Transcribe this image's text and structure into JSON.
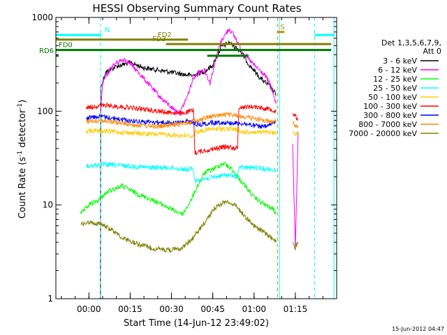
{
  "chart_data": {
    "type": "line",
    "title": "HESSI Observing Summary Count Rates",
    "xlabel": "Start Time (14-Jun-12 23:49:02)",
    "ylabel_main": "Count Rate (s",
    "ylabel_sup": "-1",
    "ylabel_mid": " detector",
    "ylabel_end": ")",
    "scale": "log",
    "xlim": [
      -12,
      90
    ],
    "ylim": [
      1,
      1000
    ],
    "yticks": [
      1,
      10,
      100,
      1000
    ],
    "yticklabels": [
      "1",
      "10",
      "100",
      "1000"
    ],
    "xticks": [
      0,
      15,
      30,
      45,
      60,
      75
    ],
    "xticklabels": [
      "00:00",
      "00:15",
      "00:30",
      "00:45",
      "01:00",
      "01:15"
    ],
    "legend_header": [
      "Det 1,3,5,6,7,9,",
      "Att 0"
    ],
    "legend_placement": "right",
    "timestamp": "15-Jun-2012 04:47",
    "series": [
      {
        "name": "3 - 6 keV",
        "color": "#000000",
        "segments": [
          [
            [
              4.2,
              1
            ],
            [
              4.3,
              180
            ],
            [
              6,
              260
            ],
            [
              10,
              300
            ],
            [
              15,
              330
            ],
            [
              20,
              290
            ],
            [
              25,
              275
            ],
            [
              30,
              260
            ],
            [
              35,
              245
            ],
            [
              38,
              240
            ],
            [
              40,
              255
            ],
            [
              42,
              265
            ],
            [
              45,
              310
            ],
            [
              48,
              480
            ],
            [
              51,
              540
            ],
            [
              55,
              440
            ],
            [
              58,
              320
            ],
            [
              62,
              230
            ],
            [
              66,
              180
            ],
            [
              68,
              150
            ]
          ]
        ]
      },
      {
        "name": "6 - 12 keV",
        "color": "#ff00ff",
        "segments": [
          [
            [
              4.2,
              90
            ],
            [
              5,
              200
            ],
            [
              8,
              290
            ],
            [
              10,
              330
            ],
            [
              13,
              360
            ],
            [
              15,
              320
            ],
            [
              18,
              260
            ],
            [
              22,
              190
            ],
            [
              26,
              140
            ],
            [
              30,
              110
            ],
            [
              33,
              95
            ],
            [
              36,
              150
            ],
            [
              38,
              230
            ],
            [
              40,
              260
            ],
            [
              42,
              280
            ],
            [
              44,
              200
            ],
            [
              46,
              350
            ],
            [
              48,
              560
            ],
            [
              50,
              690
            ],
            [
              51,
              760
            ],
            [
              53,
              620
            ],
            [
              56,
              420
            ],
            [
              60,
              310
            ],
            [
              64,
              240
            ],
            [
              66,
              190
            ],
            [
              68,
              120
            ]
          ],
          [
            [
              74,
              45
            ],
            [
              75,
              3.5
            ],
            [
              76,
              60
            ]
          ]
        ]
      },
      {
        "name": "12 - 25 keV",
        "color": "#00ff00",
        "segments": [
          [
            [
              -3,
              8
            ],
            [
              0,
              10
            ],
            [
              3,
              11
            ],
            [
              7,
              14
            ],
            [
              12,
              16
            ],
            [
              18,
              13
            ],
            [
              24,
              11
            ],
            [
              30,
              9
            ],
            [
              34,
              8
            ],
            [
              37,
              11
            ],
            [
              39,
              15
            ],
            [
              42,
              22
            ],
            [
              46,
              25
            ],
            [
              49,
              28
            ],
            [
              52,
              24
            ],
            [
              56,
              17
            ],
            [
              60,
              12
            ],
            [
              64,
              10
            ],
            [
              67,
              9
            ],
            [
              68,
              8
            ]
          ]
        ]
      },
      {
        "name": "25 - 50 keV",
        "color": "#00ffff",
        "segments": [
          [
            [
              -1,
              26
            ],
            [
              6,
              27
            ],
            [
              14,
              26
            ],
            [
              22,
              25
            ],
            [
              29,
              25
            ],
            [
              35,
              24
            ],
            [
              38,
              24
            ],
            [
              38.5,
              18
            ],
            [
              42,
              19
            ],
            [
              46,
              20
            ],
            [
              50,
              21
            ],
            [
              54,
              20
            ],
            [
              54.5,
              25
            ],
            [
              60,
              25
            ],
            [
              66,
              24
            ],
            [
              68,
              23
            ]
          ]
        ]
      },
      {
        "name": "50 - 100 keV",
        "color": "#ffcc00",
        "segments": [
          [
            [
              -1,
              62
            ],
            [
              6,
              61
            ],
            [
              14,
              59
            ],
            [
              22,
              57
            ],
            [
              29,
              56
            ],
            [
              35,
              55
            ],
            [
              38,
              54
            ],
            [
              38.5,
              60
            ],
            [
              44,
              64
            ],
            [
              50,
              65
            ],
            [
              54,
              64
            ],
            [
              54.5,
              60
            ],
            [
              60,
              60
            ],
            [
              66,
              59
            ],
            [
              68,
              58
            ]
          ],
          [
            [
              74,
              60
            ],
            [
              75,
              58
            ],
            [
              76,
              57
            ]
          ]
        ]
      },
      {
        "name": "100 - 300 keV",
        "color": "#ff0000",
        "segments": [
          [
            [
              -1,
              110
            ],
            [
              6,
              115
            ],
            [
              14,
              110
            ],
            [
              22,
              103
            ],
            [
              29,
              97
            ],
            [
              34,
              95
            ],
            [
              37,
              100
            ],
            [
              38,
              102
            ],
            [
              38.5,
              36
            ],
            [
              42,
              38
            ],
            [
              46,
              40
            ],
            [
              50,
              42
            ],
            [
              54,
              40
            ],
            [
              54.5,
              110
            ],
            [
              60,
              112
            ],
            [
              66,
              105
            ],
            [
              68,
              100
            ]
          ],
          [
            [
              74,
              95
            ],
            [
              75,
              90
            ],
            [
              76,
              80
            ]
          ]
        ]
      },
      {
        "name": "300 - 800 keV",
        "color": "#0000ff",
        "segments": [
          [
            [
              -1,
              85
            ],
            [
              4,
              88
            ],
            [
              8,
              85
            ],
            [
              14,
              80
            ],
            [
              20,
              77
            ],
            [
              26,
              76
            ],
            [
              32,
              75
            ],
            [
              36,
              78
            ],
            [
              40,
              72
            ],
            [
              44,
              75
            ],
            [
              48,
              76
            ],
            [
              52,
              75
            ],
            [
              56,
              74
            ],
            [
              60,
              70
            ],
            [
              64,
              68
            ],
            [
              66,
              72
            ],
            [
              68,
              78
            ]
          ]
        ]
      },
      {
        "name": "800 - 7000 keV",
        "color": "#ff8800",
        "segments": [
          [
            [
              -1,
              78
            ],
            [
              4,
              80
            ],
            [
              8,
              77
            ],
            [
              14,
              73
            ],
            [
              20,
              70
            ],
            [
              26,
              69
            ],
            [
              32,
              72
            ],
            [
              38,
              78
            ],
            [
              44,
              88
            ],
            [
              50,
              92
            ],
            [
              56,
              88
            ],
            [
              60,
              84
            ],
            [
              64,
              79
            ],
            [
              68,
              76
            ]
          ],
          [
            [
              74,
              75
            ],
            [
              75,
              72
            ],
            [
              76,
              70
            ]
          ]
        ]
      },
      {
        "name": "7000 - 20000 keV",
        "color": "#808000",
        "segments": [
          [
            [
              -3,
              6.2
            ],
            [
              0,
              6.5
            ],
            [
              4,
              6.3
            ],
            [
              8,
              5.5
            ],
            [
              12,
              4.5
            ],
            [
              18,
              3.8
            ],
            [
              24,
              3.4
            ],
            [
              30,
              3.3
            ],
            [
              34,
              3.5
            ],
            [
              38,
              4.5
            ],
            [
              42,
              6.5
            ],
            [
              46,
              9.5
            ],
            [
              50,
              11
            ],
            [
              53,
              10
            ],
            [
              56,
              8
            ],
            [
              60,
              6
            ],
            [
              64,
              5
            ],
            [
              67,
              4.3
            ],
            [
              68,
              4
            ]
          ],
          [
            [
              74,
              4
            ],
            [
              75,
              3.5
            ],
            [
              76,
              4
            ]
          ]
        ]
      }
    ],
    "markers": [
      {
        "label": "N",
        "color": "#00ffff",
        "y": 650,
        "segments": [
          [
            -12,
            4.5
          ],
          [
            82,
            89
          ]
        ]
      },
      {
        "label": "S",
        "color": "#cc8800",
        "y": 700,
        "segments": [
          [
            68.5,
            71
          ]
        ]
      },
      {
        "label": "FD2",
        "color": "#808000",
        "y": 580,
        "segments": [
          [
            -12,
            36
          ]
        ]
      },
      {
        "label": "FD3",
        "color": "#808000",
        "y": 520,
        "segments": [
          [
            28,
            88
          ]
        ]
      },
      {
        "label": "FD0",
        "color": "#007700",
        "y": 450,
        "segments": [
          [
            -12,
            88
          ]
        ]
      },
      {
        "label": "RD6",
        "color": "#007700",
        "y": 390,
        "segments": [
          [
            -12,
            -11
          ],
          [
            43,
            58
          ]
        ]
      }
    ],
    "vlines": [
      {
        "x": 4.2,
        "color": "#00ffff",
        "style": "dashed"
      },
      {
        "x": 68.5,
        "color": "#cc8800",
        "style": "dashed"
      },
      {
        "x": 69.2,
        "color": "#00ffff",
        "style": "solid"
      },
      {
        "x": 82,
        "color": "#00ffff",
        "style": "dashed"
      },
      {
        "x": 89,
        "color": "#00ffff",
        "style": "solid"
      }
    ]
  }
}
